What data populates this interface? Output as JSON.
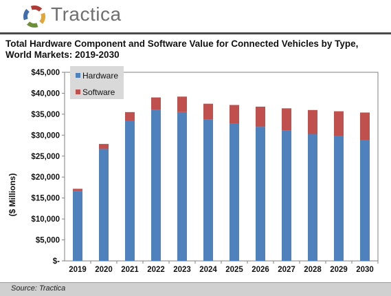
{
  "brand": {
    "name": "Tractica"
  },
  "footer": {
    "source": "Source: Tractica"
  },
  "colors": {
    "hardware": "#4f81bd",
    "software": "#c0504d"
  },
  "chart_data": {
    "type": "bar",
    "stacked": true,
    "title": "Total Hardware Component and Software Value for Connected Vehicles by Type, World Markets: 2019-2030",
    "ylabel": "($ Millions)",
    "xlabel": "",
    "categories": [
      "2019",
      "2020",
      "2021",
      "2022",
      "2023",
      "2024",
      "2025",
      "2026",
      "2027",
      "2028",
      "2029",
      "2030"
    ],
    "series": [
      {
        "name": "Hardware",
        "values": [
          16700,
          26700,
          33500,
          36000,
          35500,
          33700,
          32700,
          32000,
          31100,
          30300,
          29800,
          28900
        ]
      },
      {
        "name": "Software",
        "values": [
          500,
          1200,
          2000,
          3000,
          3700,
          3800,
          4500,
          4800,
          5300,
          5700,
          5900,
          6500
        ]
      }
    ],
    "ylim": [
      0,
      45000
    ],
    "yticks": [
      0,
      5000,
      10000,
      15000,
      20000,
      25000,
      30000,
      35000,
      40000,
      45000
    ],
    "ytick_labels": [
      "$-",
      "$5,000",
      "$10,000",
      "$15,000",
      "$20,000",
      "$25,000",
      "$30,000",
      "$35,000",
      "$40,000",
      "$45,000"
    ],
    "legend": "top-left",
    "grid": false
  }
}
